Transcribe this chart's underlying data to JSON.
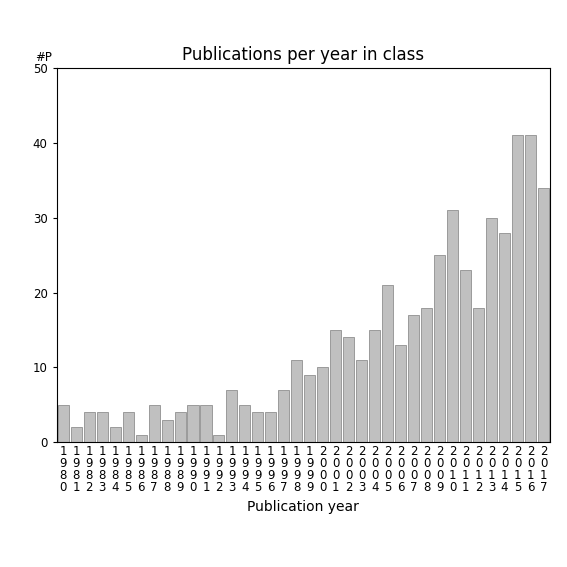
{
  "title": "Publications per year in class",
  "xlabel": "Publication year",
  "ylabel_label": "#P",
  "years": [
    1980,
    1981,
    1982,
    1983,
    1984,
    1985,
    1986,
    1987,
    1988,
    1989,
    1990,
    1991,
    1992,
    1993,
    1994,
    1995,
    1996,
    1997,
    1998,
    1999,
    2000,
    2001,
    2002,
    2003,
    2004,
    2005,
    2006,
    2007,
    2008,
    2009,
    2010,
    2011,
    2012,
    2013,
    2014,
    2015,
    2016,
    2017
  ],
  "values": [
    5,
    2,
    4,
    4,
    2,
    4,
    1,
    5,
    3,
    4,
    5,
    5,
    1,
    7,
    5,
    4,
    4,
    7,
    11,
    9,
    10,
    15,
    14,
    11,
    15,
    21,
    13,
    17,
    18,
    25,
    31,
    23,
    18,
    30,
    28,
    41,
    41,
    34
  ],
  "bar_color": "#c0c0c0",
  "bar_edgecolor": "#909090",
  "ylim": [
    0,
    50
  ],
  "yticks": [
    0,
    10,
    20,
    30,
    40,
    50
  ],
  "background_color": "#ffffff",
  "title_fontsize": 12,
  "label_fontsize": 10,
  "tick_fontsize": 8.5
}
